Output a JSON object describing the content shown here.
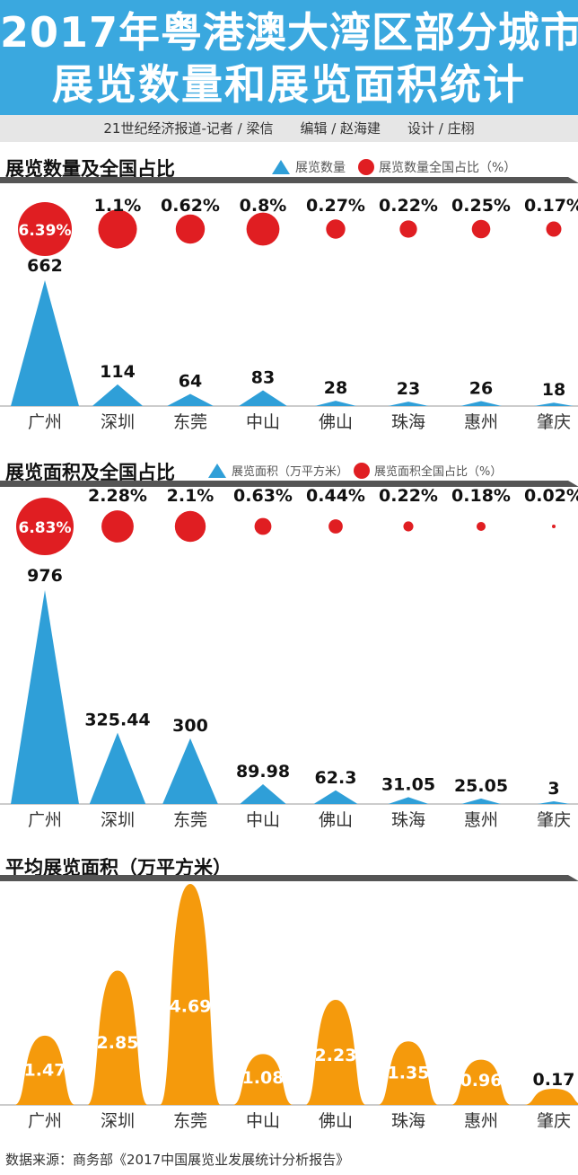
{
  "header": {
    "title_line1": "2017年粤港澳大湾区部分城市",
    "title_line2": "展览数量和展览面积统计",
    "credits": "21世纪经济报道-记者 / 梁信　　编辑 / 赵海建　　设计 / 庄栩"
  },
  "source": "数据来源：商务部《2017中国展览业发展统计分析报告》",
  "colors": {
    "header_blue": "#3aa8df",
    "triangle_blue": "#2f9fd8",
    "dot_red": "#e01e22",
    "bell_orange": "#f59a0c"
  },
  "chart_data": [
    {
      "type": "area",
      "title": "展览数量及全国占比",
      "categories": [
        "广州",
        "深圳",
        "东莞",
        "中山",
        "佛山",
        "珠海",
        "惠州",
        "肇庆"
      ],
      "series": [
        {
          "name": "展览数量",
          "values": [
            662,
            114,
            64,
            83,
            28,
            23,
            26,
            18
          ],
          "labels": [
            "662",
            "114",
            "64",
            "83",
            "28",
            "23",
            "26",
            "18"
          ]
        },
        {
          "name": "展览数量全国占比（%）",
          "values": [
            6.39,
            1.1,
            0.62,
            0.8,
            0.27,
            0.22,
            0.25,
            0.17
          ],
          "labels": [
            "6.39%",
            "1.1%",
            "0.62%",
            "0.8%",
            "0.27%",
            "0.22%",
            "0.25%",
            "0.17%"
          ]
        }
      ]
    },
    {
      "type": "area",
      "title": "展览面积及全国占比",
      "categories": [
        "广州",
        "深圳",
        "东莞",
        "中山",
        "佛山",
        "珠海",
        "惠州",
        "肇庆"
      ],
      "series": [
        {
          "name": "展览面积（万平方米）",
          "values": [
            976,
            325.44,
            300,
            89.98,
            62.3,
            31.05,
            25.05,
            3
          ],
          "labels": [
            "976",
            "325.44",
            "300",
            "89.98",
            "62.3",
            "31.05",
            "25.05",
            "3"
          ]
        },
        {
          "name": "展览面积全国占比（%）",
          "values": [
            6.83,
            2.28,
            2.1,
            0.63,
            0.44,
            0.22,
            0.18,
            0.02
          ],
          "labels": [
            "6.83%",
            "2.28%",
            "2.1%",
            "0.63%",
            "0.44%",
            "0.22%",
            "0.18%",
            "0.02%"
          ]
        }
      ]
    },
    {
      "type": "area",
      "title": "平均展览面积（万平方米）",
      "categories": [
        "广州",
        "深圳",
        "东莞",
        "中山",
        "佛山",
        "珠海",
        "惠州",
        "肇庆"
      ],
      "series": [
        {
          "values": [
            1.47,
            2.85,
            4.69,
            1.08,
            2.23,
            1.35,
            0.96,
            0.17
          ],
          "labels": [
            "1.47",
            "2.85",
            "4.69",
            "1.08",
            "2.23",
            "1.35",
            "0.96",
            "0.17"
          ]
        }
      ]
    }
  ]
}
